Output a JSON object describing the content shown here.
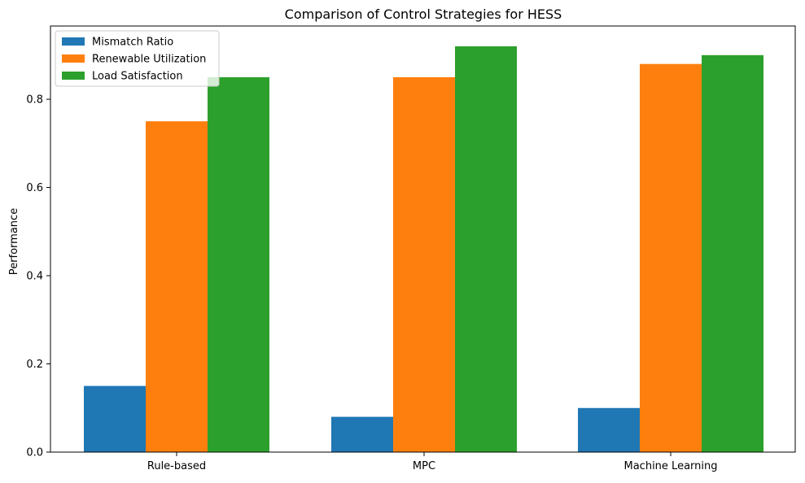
{
  "chart_data": {
    "type": "bar",
    "title": "Comparison of Control Strategies for HESS",
    "xlabel": "",
    "ylabel": "Performance",
    "categories": [
      "Rule-based",
      "MPC",
      "Machine Learning"
    ],
    "series": [
      {
        "name": "Mismatch Ratio",
        "values": [
          0.15,
          0.08,
          0.1
        ],
        "color": "#1f77b4"
      },
      {
        "name": "Renewable Utilization",
        "values": [
          0.75,
          0.85,
          0.88
        ],
        "color": "#ff7f0e"
      },
      {
        "name": "Load Satisfaction",
        "values": [
          0.85,
          0.92,
          0.9
        ],
        "color": "#2ca02c"
      }
    ],
    "ylim": [
      0,
      0.966
    ],
    "yticks": [
      0.0,
      0.2,
      0.4,
      0.6,
      0.8
    ],
    "ytick_labels": [
      "0.0",
      "0.2",
      "0.4",
      "0.6",
      "0.8"
    ],
    "grid": false,
    "legend_position": "top-left"
  }
}
